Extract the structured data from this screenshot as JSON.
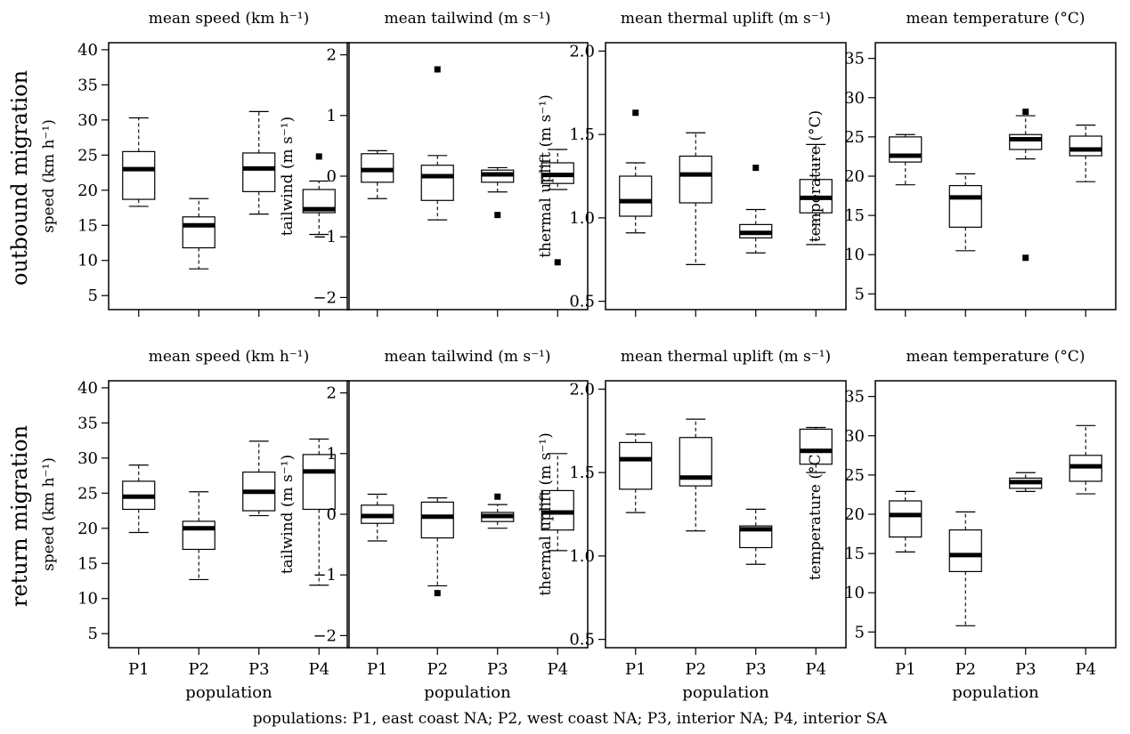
{
  "figure": {
    "row_labels": [
      "outbound migration",
      "return migration"
    ],
    "caption": "populations: P1, east coast NA; P2, west coast NA; P3, interior NA; P4, interior SA"
  },
  "chart_data": [
    {
      "type": "box",
      "title": "mean speed (km h⁻¹)",
      "ylabel": "speed (km h⁻¹)",
      "xlabel": "",
      "ylim": [
        3,
        41
      ],
      "yticks": [
        "5",
        "10",
        "15",
        "20",
        "25",
        "30",
        "35",
        "40"
      ],
      "categories": [
        "P1",
        "P2",
        "P3",
        "P4"
      ],
      "show_tick_labels": false,
      "boxes": [
        {
          "whisker_low": 17.7,
          "q1": 18.7,
          "median": 23,
          "q3": 25.5,
          "whisker_high": 30.3,
          "outliers": []
        },
        {
          "whisker_low": 8.8,
          "q1": 11.8,
          "median": 15,
          "q3": 16.2,
          "whisker_high": 18.8,
          "outliers": []
        },
        {
          "whisker_low": 16.6,
          "q1": 19.8,
          "median": 23.1,
          "q3": 25.3,
          "whisker_high": 31.2,
          "outliers": []
        },
        {
          "whisker_low": 13.7,
          "q1": 16.8,
          "median": 17.3,
          "q3": 20.1,
          "whisker_high": 21.3,
          "outliers": [
            24.8
          ]
        }
      ]
    },
    {
      "type": "box",
      "title": "mean tailwind (m s⁻¹)",
      "ylabel": "tailwind (m s⁻¹)",
      "xlabel": "",
      "ylim": [
        -2.2,
        2.2
      ],
      "yticks": [
        "−2",
        "−1",
        "0",
        "1",
        "2"
      ],
      "categories": [
        "P1",
        "P2",
        "P3",
        "P4"
      ],
      "show_tick_labels": false,
      "boxes": [
        {
          "whisker_low": -0.37,
          "q1": -0.1,
          "median": 0.1,
          "q3": 0.37,
          "whisker_high": 0.42,
          "outliers": []
        },
        {
          "whisker_low": -0.72,
          "q1": -0.4,
          "median": 0,
          "q3": 0.18,
          "whisker_high": 0.34,
          "outliers": [
            1.76
          ]
        },
        {
          "whisker_low": -0.26,
          "q1": -0.1,
          "median": 0.03,
          "q3": 0.1,
          "whisker_high": 0.14,
          "outliers": [
            -0.64
          ]
        },
        {
          "whisker_low": -0.22,
          "q1": -0.12,
          "median": 0.02,
          "q3": 0.22,
          "whisker_high": 0.44,
          "outliers": [
            -1.42
          ]
        }
      ]
    },
    {
      "type": "box",
      "title": "mean thermal uplift (m s⁻¹)",
      "ylabel": "thermal uplift (m s⁻¹)",
      "xlabel": "",
      "ylim": [
        0.45,
        2.05
      ],
      "yticks": [
        "0.5",
        "1.0",
        "1.5",
        "2.0"
      ],
      "categories": [
        "P1",
        "P2",
        "P3",
        "P4"
      ],
      "show_tick_labels": false,
      "boxes": [
        {
          "whisker_low": 0.91,
          "q1": 1.01,
          "median": 1.1,
          "q3": 1.25,
          "whisker_high": 1.33,
          "outliers": [
            1.63
          ]
        },
        {
          "whisker_low": 0.72,
          "q1": 1.09,
          "median": 1.26,
          "q3": 1.37,
          "whisker_high": 1.51,
          "outliers": []
        },
        {
          "whisker_low": 0.79,
          "q1": 0.88,
          "median": 0.91,
          "q3": 0.96,
          "whisker_high": 1.05,
          "outliers": [
            1.3
          ]
        },
        {
          "whisker_low": 0.84,
          "q1": 1.03,
          "median": 1.12,
          "q3": 1.23,
          "whisker_high": 1.44,
          "outliers": []
        }
      ]
    },
    {
      "type": "box",
      "title": "mean temperature (°C)",
      "ylabel": "temperature (°C)",
      "xlabel": "",
      "ylim": [
        3,
        37
      ],
      "yticks": [
        "5",
        "10",
        "15",
        "20",
        "25",
        "30",
        "35"
      ],
      "categories": [
        "P1",
        "P2",
        "P3",
        "P4"
      ],
      "show_tick_labels": false,
      "boxes": [
        {
          "whisker_low": 18.9,
          "q1": 21.8,
          "median": 22.6,
          "q3": 25,
          "whisker_high": 25.3,
          "outliers": []
        },
        {
          "whisker_low": 10.5,
          "q1": 13.5,
          "median": 17.3,
          "q3": 18.8,
          "whisker_high": 20.3,
          "outliers": []
        },
        {
          "whisker_low": 22.2,
          "q1": 23.4,
          "median": 24.7,
          "q3": 25.3,
          "whisker_high": 27.7,
          "outliers": [
            28.2,
            9.6
          ]
        },
        {
          "whisker_low": 19.3,
          "q1": 22.6,
          "median": 23.4,
          "q3": 25.1,
          "whisker_high": 26.5,
          "outliers": []
        }
      ]
    },
    {
      "type": "box",
      "title": "mean speed (km h⁻¹)",
      "ylabel": "speed (km h⁻¹)",
      "xlabel": "population",
      "ylim": [
        3,
        41
      ],
      "yticks": [
        "5",
        "10",
        "15",
        "20",
        "25",
        "30",
        "35",
        "40"
      ],
      "categories": [
        "P1",
        "P2",
        "P3",
        "P4"
      ],
      "show_tick_labels": true,
      "boxes": [
        {
          "whisker_low": 19.4,
          "q1": 22.7,
          "median": 24.5,
          "q3": 26.7,
          "whisker_high": 29,
          "outliers": []
        },
        {
          "whisker_low": 12.7,
          "q1": 17,
          "median": 20,
          "q3": 21,
          "whisker_high": 25.2,
          "outliers": []
        },
        {
          "whisker_low": 21.8,
          "q1": 22.5,
          "median": 25.2,
          "q3": 28,
          "whisker_high": 32.4,
          "outliers": []
        },
        {
          "whisker_low": 11.9,
          "q1": 22.7,
          "median": 28.1,
          "q3": 30.5,
          "whisker_high": 32.7,
          "outliers": []
        }
      ]
    },
    {
      "type": "box",
      "title": "mean tailwind (m s⁻¹)",
      "ylabel": "tailwind (m s⁻¹)",
      "xlabel": "population",
      "ylim": [
        -2.2,
        2.2
      ],
      "yticks": [
        "−2",
        "−1",
        "0",
        "1",
        "2"
      ],
      "categories": [
        "P1",
        "P2",
        "P3",
        "P4"
      ],
      "show_tick_labels": true,
      "boxes": [
        {
          "whisker_low": -0.44,
          "q1": -0.15,
          "median": -0.03,
          "q3": 0.15,
          "whisker_high": 0.33,
          "outliers": []
        },
        {
          "whisker_low": -1.18,
          "q1": -0.39,
          "median": -0.04,
          "q3": 0.2,
          "whisker_high": 0.27,
          "outliers": [
            -1.3
          ]
        },
        {
          "whisker_low": -0.23,
          "q1": -0.12,
          "median": -0.03,
          "q3": 0.03,
          "whisker_high": 0.16,
          "outliers": [
            0.29
          ]
        },
        {
          "whisker_low": -0.6,
          "q1": -0.26,
          "median": 0.03,
          "q3": 0.39,
          "whisker_high": 1,
          "outliers": []
        }
      ]
    },
    {
      "type": "box",
      "title": "mean thermal uplift (m s⁻¹)",
      "ylabel": "thermal uplift (m s⁻¹)",
      "xlabel": "population",
      "ylim": [
        0.45,
        2.05
      ],
      "yticks": [
        "0.5",
        "1.0",
        "1.5",
        "2.0"
      ],
      "categories": [
        "P1",
        "P2",
        "P3",
        "P4"
      ],
      "show_tick_labels": true,
      "boxes": [
        {
          "whisker_low": 1.26,
          "q1": 1.4,
          "median": 1.58,
          "q3": 1.68,
          "whisker_high": 1.73,
          "outliers": []
        },
        {
          "whisker_low": 1.15,
          "q1": 1.42,
          "median": 1.47,
          "q3": 1.71,
          "whisker_high": 1.82,
          "outliers": []
        },
        {
          "whisker_low": 0.95,
          "q1": 1.05,
          "median": 1.16,
          "q3": 1.18,
          "whisker_high": 1.28,
          "outliers": []
        },
        {
          "whisker_low": 1.5,
          "q1": 1.55,
          "median": 1.63,
          "q3": 1.76,
          "whisker_high": 1.77,
          "outliers": []
        }
      ]
    },
    {
      "type": "box",
      "title": "mean temperature (°C)",
      "ylabel": "temperature (°C)",
      "xlabel": "population",
      "ylim": [
        3,
        37
      ],
      "yticks": [
        "5",
        "10",
        "15",
        "20",
        "25",
        "30",
        "35"
      ],
      "categories": [
        "P1",
        "P2",
        "P3",
        "P4"
      ],
      "show_tick_labels": true,
      "boxes": [
        {
          "whisker_low": 15.2,
          "q1": 17.1,
          "median": 19.9,
          "q3": 21.7,
          "whisker_high": 22.9,
          "outliers": []
        },
        {
          "whisker_low": 5.8,
          "q1": 12.7,
          "median": 14.8,
          "q3": 18,
          "whisker_high": 20.3,
          "outliers": []
        },
        {
          "whisker_low": 22.9,
          "q1": 23.3,
          "median": 24.1,
          "q3": 24.6,
          "whisker_high": 25.3,
          "outliers": []
        },
        {
          "whisker_low": 22.6,
          "q1": 24.2,
          "median": 26.1,
          "q3": 27.5,
          "whisker_high": 31.3,
          "outliers": []
        }
      ]
    }
  ]
}
